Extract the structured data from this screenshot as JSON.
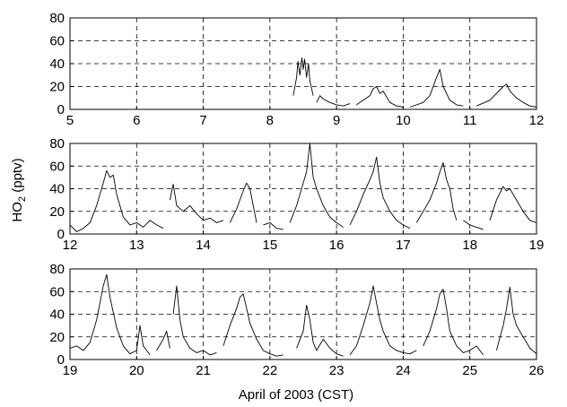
{
  "chart_data": {
    "type": "line",
    "xlabel": "April of 2003 (CST)",
    "ylabel": "HO2 (pptv)",
    "ylabel_main": "HO",
    "ylabel_sub": "2",
    "ylabel_tail": " (pptv)",
    "grid": true,
    "panels": [
      {
        "xlim": [
          5,
          12
        ],
        "ylim": [
          0,
          80
        ],
        "xticks": [
          5,
          6,
          7,
          8,
          9,
          10,
          11,
          12
        ],
        "yticks": [
          0,
          20,
          40,
          60,
          80
        ],
        "segments": [
          [
            [
              8.35,
              12
            ],
            [
              8.4,
              28
            ],
            [
              8.42,
              42
            ],
            [
              8.45,
              30
            ],
            [
              8.48,
              45
            ],
            [
              8.5,
              35
            ],
            [
              8.52,
              44
            ],
            [
              8.55,
              28
            ],
            [
              8.58,
              40
            ],
            [
              8.6,
              25
            ],
            [
              8.65,
              12
            ]
          ],
          [
            [
              8.7,
              6
            ],
            [
              8.75,
              12
            ],
            [
              8.8,
              9
            ],
            [
              8.9,
              6
            ],
            [
              9.0,
              4
            ],
            [
              9.1,
              3
            ],
            [
              9.2,
              5
            ]
          ],
          [
            [
              9.3,
              4
            ],
            [
              9.4,
              8
            ],
            [
              9.5,
              12
            ],
            [
              9.55,
              18
            ],
            [
              9.6,
              20
            ],
            [
              9.65,
              14
            ],
            [
              9.7,
              16
            ],
            [
              9.8,
              6
            ],
            [
              9.9,
              3
            ],
            [
              10.0,
              2
            ]
          ],
          [
            [
              10.1,
              2
            ],
            [
              10.3,
              6
            ],
            [
              10.4,
              12
            ],
            [
              10.45,
              20
            ],
            [
              10.5,
              28
            ],
            [
              10.55,
              35
            ],
            [
              10.6,
              20
            ],
            [
              10.7,
              8
            ],
            [
              10.8,
              4
            ],
            [
              10.9,
              3
            ]
          ],
          [
            [
              11.1,
              3
            ],
            [
              11.3,
              8
            ],
            [
              11.4,
              14
            ],
            [
              11.5,
              20
            ],
            [
              11.55,
              22
            ],
            [
              11.6,
              16
            ],
            [
              11.7,
              10
            ],
            [
              11.8,
              6
            ],
            [
              11.9,
              3
            ],
            [
              12.0,
              2
            ]
          ]
        ]
      },
      {
        "xlim": [
          12,
          19
        ],
        "ylim": [
          0,
          80
        ],
        "xticks": [
          12,
          13,
          14,
          15,
          16,
          17,
          18,
          19
        ],
        "yticks": [
          0,
          20,
          40,
          60,
          80
        ],
        "segments": [
          [
            [
              12.0,
              8
            ],
            [
              12.1,
              2
            ],
            [
              12.2,
              5
            ],
            [
              12.3,
              10
            ],
            [
              12.4,
              25
            ],
            [
              12.5,
              45
            ],
            [
              12.55,
              56
            ],
            [
              12.6,
              50
            ],
            [
              12.65,
              52
            ],
            [
              12.7,
              35
            ],
            [
              12.8,
              15
            ],
            [
              12.9,
              8
            ],
            [
              13.0,
              10
            ],
            [
              13.1,
              6
            ],
            [
              13.2,
              12
            ],
            [
              13.3,
              8
            ],
            [
              13.4,
              5
            ]
          ],
          [
            [
              13.5,
              30
            ],
            [
              13.55,
              44
            ],
            [
              13.6,
              25
            ],
            [
              13.7,
              20
            ],
            [
              13.8,
              25
            ],
            [
              13.9,
              18
            ],
            [
              14.0,
              12
            ],
            [
              14.1,
              14
            ],
            [
              14.2,
              10
            ],
            [
              14.3,
              12
            ]
          ],
          [
            [
              14.4,
              10
            ],
            [
              14.5,
              22
            ],
            [
              14.6,
              38
            ],
            [
              14.65,
              45
            ],
            [
              14.7,
              40
            ],
            [
              14.75,
              25
            ],
            [
              14.8,
              10
            ]
          ],
          [
            [
              14.9,
              8
            ],
            [
              15.0,
              10
            ],
            [
              15.1,
              5
            ],
            [
              15.2,
              4
            ]
          ],
          [
            [
              15.3,
              10
            ],
            [
              15.4,
              25
            ],
            [
              15.5,
              45
            ],
            [
              15.55,
              55
            ],
            [
              15.6,
              80
            ],
            [
              15.65,
              50
            ],
            [
              15.7,
              40
            ],
            [
              15.8,
              25
            ],
            [
              15.9,
              15
            ],
            [
              16.0,
              10
            ],
            [
              16.1,
              6
            ]
          ],
          [
            [
              16.2,
              8
            ],
            [
              16.3,
              20
            ],
            [
              16.4,
              35
            ],
            [
              16.5,
              48
            ],
            [
              16.55,
              55
            ],
            [
              16.6,
              68
            ],
            [
              16.65,
              45
            ],
            [
              16.7,
              32
            ],
            [
              16.8,
              20
            ],
            [
              16.9,
              12
            ],
            [
              17.0,
              8
            ],
            [
              17.1,
              5
            ]
          ],
          [
            [
              17.2,
              10
            ],
            [
              17.3,
              20
            ],
            [
              17.4,
              30
            ],
            [
              17.5,
              45
            ],
            [
              17.55,
              55
            ],
            [
              17.6,
              63
            ],
            [
              17.65,
              48
            ],
            [
              17.7,
              40
            ],
            [
              17.75,
              22
            ],
            [
              17.8,
              12
            ]
          ],
          [
            [
              17.9,
              12
            ],
            [
              18.0,
              8
            ],
            [
              18.1,
              6
            ],
            [
              18.2,
              4
            ]
          ],
          [
            [
              18.3,
              12
            ],
            [
              18.4,
              30
            ],
            [
              18.5,
              42
            ],
            [
              18.55,
              38
            ],
            [
              18.6,
              40
            ],
            [
              18.7,
              30
            ],
            [
              18.8,
              20
            ],
            [
              18.9,
              12
            ],
            [
              19.0,
              10
            ]
          ]
        ]
      },
      {
        "xlim": [
          19,
          26
        ],
        "ylim": [
          0,
          80
        ],
        "xticks": [
          19,
          20,
          21,
          22,
          23,
          24,
          25,
          26
        ],
        "yticks": [
          0,
          20,
          40,
          60,
          80
        ],
        "segments": [
          [
            [
              19.0,
              10
            ],
            [
              19.1,
              12
            ],
            [
              19.2,
              8
            ],
            [
              19.3,
              15
            ],
            [
              19.4,
              35
            ],
            [
              19.5,
              65
            ],
            [
              19.55,
              75
            ],
            [
              19.6,
              55
            ],
            [
              19.7,
              28
            ],
            [
              19.8,
              12
            ],
            [
              19.9,
              5
            ],
            [
              20.0,
              8
            ],
            [
              20.05,
              30
            ],
            [
              20.1,
              12
            ],
            [
              20.2,
              4
            ]
          ],
          [
            [
              20.3,
              8
            ],
            [
              20.4,
              18
            ],
            [
              20.45,
              25
            ],
            [
              20.5,
              10
            ]
          ],
          [
            [
              20.55,
              40
            ],
            [
              20.6,
              65
            ],
            [
              20.65,
              35
            ],
            [
              20.7,
              20
            ],
            [
              20.8,
              10
            ],
            [
              20.9,
              6
            ],
            [
              21.0,
              8
            ],
            [
              21.1,
              4
            ],
            [
              21.2,
              6
            ]
          ],
          [
            [
              21.3,
              12
            ],
            [
              21.4,
              30
            ],
            [
              21.5,
              45
            ],
            [
              21.55,
              55
            ],
            [
              21.6,
              58
            ],
            [
              21.65,
              45
            ],
            [
              21.7,
              32
            ],
            [
              21.8,
              18
            ],
            [
              21.9,
              8
            ],
            [
              22.0,
              5
            ],
            [
              22.1,
              3
            ],
            [
              22.2,
              4
            ]
          ],
          [
            [
              22.4,
              10
            ],
            [
              22.5,
              25
            ],
            [
              22.55,
              48
            ],
            [
              22.6,
              35
            ],
            [
              22.65,
              15
            ],
            [
              22.7,
              8
            ],
            [
              22.8,
              18
            ],
            [
              22.9,
              10
            ],
            [
              23.0,
              5
            ],
            [
              23.1,
              3
            ]
          ],
          [
            [
              23.2,
              4
            ],
            [
              23.3,
              12
            ],
            [
              23.4,
              30
            ],
            [
              23.5,
              50
            ],
            [
              23.55,
              65
            ],
            [
              23.6,
              50
            ],
            [
              23.65,
              35
            ],
            [
              23.7,
              25
            ],
            [
              23.8,
              12
            ],
            [
              23.9,
              8
            ],
            [
              24.0,
              6
            ],
            [
              24.1,
              5
            ],
            [
              24.2,
              8
            ]
          ],
          [
            [
              24.3,
              12
            ],
            [
              24.4,
              25
            ],
            [
              24.5,
              45
            ],
            [
              24.55,
              58
            ],
            [
              24.6,
              62
            ],
            [
              24.65,
              45
            ],
            [
              24.7,
              25
            ],
            [
              24.8,
              12
            ],
            [
              24.9,
              6
            ],
            [
              25.0,
              8
            ],
            [
              25.1,
              12
            ],
            [
              25.2,
              4
            ]
          ],
          [
            [
              25.4,
              8
            ],
            [
              25.5,
              30
            ],
            [
              25.55,
              45
            ],
            [
              25.6,
              64
            ],
            [
              25.65,
              40
            ],
            [
              25.7,
              30
            ],
            [
              25.8,
              20
            ],
            [
              25.9,
              10
            ],
            [
              26.0,
              5
            ]
          ]
        ]
      }
    ]
  }
}
